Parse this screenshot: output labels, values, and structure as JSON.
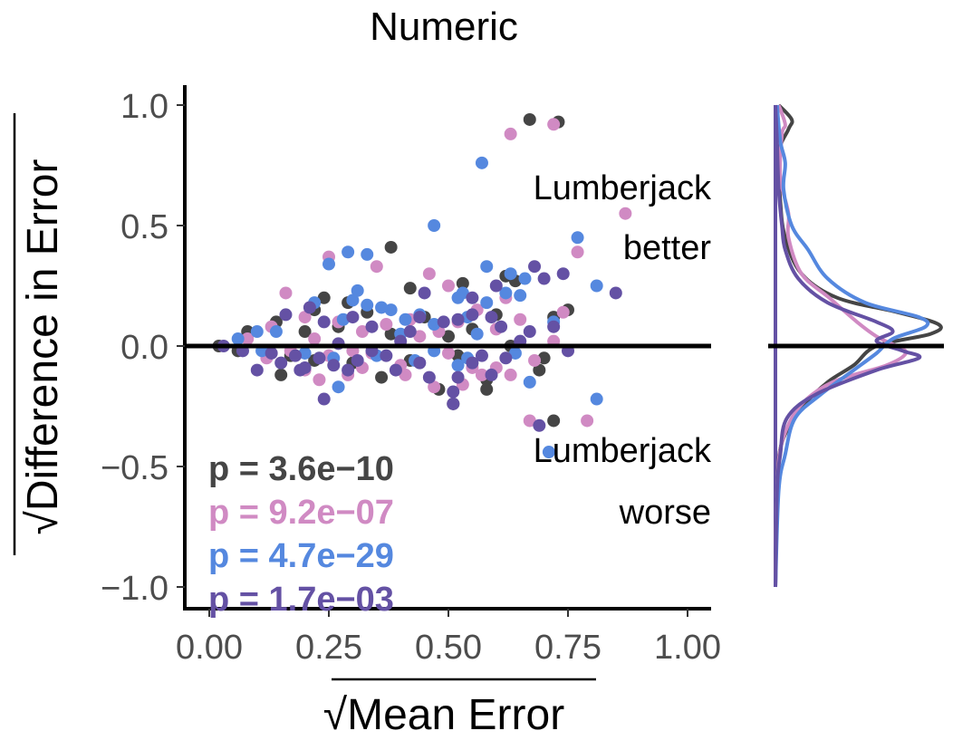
{
  "chart_data": {
    "type": "scatter",
    "title": "Numeric",
    "xlabel": "Mean Error",
    "ylabel": "Difference in Error",
    "label_radical": "√",
    "xlim": [
      -0.05,
      1.05
    ],
    "ylim": [
      -1.1,
      1.1
    ],
    "xticks": [
      {
        "v": 0.0,
        "label": "0.00"
      },
      {
        "v": 0.25,
        "label": "0.25"
      },
      {
        "v": 0.5,
        "label": "0.50"
      },
      {
        "v": 0.75,
        "label": "0.75"
      },
      {
        "v": 1.0,
        "label": "1.00"
      }
    ],
    "yticks": [
      {
        "v": 1.0,
        "label": "1.0"
      },
      {
        "v": 0.5,
        "label": "0.5"
      },
      {
        "v": 0.0,
        "label": "0.0"
      },
      {
        "v": -0.5,
        "label": "−0.5"
      },
      {
        "v": -1.0,
        "label": "−1.0"
      }
    ],
    "reference_line_y": 0,
    "grid": false,
    "annotations": {
      "better": [
        "Lumberjack",
        "better"
      ],
      "worse": [
        "Lumberjack",
        "worse"
      ]
    },
    "series": [
      {
        "color": "#454545",
        "pvalue_label": "p = 3.6e−10",
        "points": [
          [
            0.67,
            0.94
          ],
          [
            0.73,
            0.93
          ],
          [
            0.38,
            0.41
          ],
          [
            0.62,
            0.29
          ],
          [
            0.64,
            0.27
          ],
          [
            0.53,
            0.26
          ],
          [
            0.42,
            0.24
          ],
          [
            0.24,
            0.2
          ],
          [
            0.29,
            0.18
          ],
          [
            0.22,
            0.15
          ],
          [
            0.33,
            0.14
          ],
          [
            0.45,
            0.12
          ],
          [
            0.6,
            0.13
          ],
          [
            0.75,
            0.15
          ],
          [
            0.72,
            0.12
          ],
          [
            0.14,
            0.1
          ],
          [
            0.08,
            0.06
          ],
          [
            0.2,
            0.06
          ],
          [
            0.27,
            0.08
          ],
          [
            0.38,
            0.05
          ],
          [
            0.5,
            0.04
          ],
          [
            0.55,
            0.07
          ],
          [
            0.02,
            0.0
          ],
          [
            0.06,
            -0.02
          ],
          [
            0.12,
            -0.03
          ],
          [
            0.17,
            -0.04
          ],
          [
            0.22,
            -0.06
          ],
          [
            0.3,
            -0.07
          ],
          [
            0.42,
            -0.06
          ],
          [
            0.52,
            -0.04
          ],
          [
            0.63,
            0.0
          ],
          [
            0.7,
            -0.05
          ],
          [
            0.58,
            -0.14
          ],
          [
            0.48,
            -0.18
          ],
          [
            0.51,
            -0.24
          ],
          [
            0.58,
            -0.18
          ],
          [
            0.72,
            -0.31
          ],
          [
            0.69,
            -0.1
          ],
          [
            0.15,
            -0.12
          ],
          [
            0.36,
            -0.13
          ]
        ]
      },
      {
        "color": "#d08ac3",
        "pvalue_label": "p = 9.2e−07",
        "points": [
          [
            0.63,
            0.88
          ],
          [
            0.72,
            0.92
          ],
          [
            0.87,
            0.55
          ],
          [
            0.77,
            0.39
          ],
          [
            0.35,
            0.33
          ],
          [
            0.25,
            0.37
          ],
          [
            0.46,
            0.3
          ],
          [
            0.5,
            0.25
          ],
          [
            0.62,
            0.2
          ],
          [
            0.74,
            0.14
          ],
          [
            0.16,
            0.22
          ],
          [
            0.2,
            0.12
          ],
          [
            0.27,
            0.1
          ],
          [
            0.37,
            0.09
          ],
          [
            0.42,
            0.11
          ],
          [
            0.52,
            0.1
          ],
          [
            0.56,
            0.15
          ],
          [
            0.65,
            0.11
          ],
          [
            0.13,
            0.08
          ],
          [
            0.22,
            0.03
          ],
          [
            0.32,
            0.06
          ],
          [
            0.44,
            0.04
          ],
          [
            0.48,
            0.06
          ],
          [
            0.6,
            0.07
          ],
          [
            0.72,
            0.02
          ],
          [
            0.08,
            0.03
          ],
          [
            0.17,
            -0.02
          ],
          [
            0.25,
            -0.04
          ],
          [
            0.34,
            -0.03
          ],
          [
            0.4,
            -0.08
          ],
          [
            0.5,
            -0.03
          ],
          [
            0.6,
            -0.09
          ],
          [
            0.68,
            -0.06
          ],
          [
            0.2,
            -0.1
          ],
          [
            0.29,
            -0.12
          ],
          [
            0.41,
            -0.12
          ],
          [
            0.53,
            -0.16
          ],
          [
            0.63,
            -0.12
          ],
          [
            0.55,
            -0.09
          ],
          [
            0.23,
            -0.14
          ],
          [
            0.67,
            -0.31
          ],
          [
            0.79,
            -0.31
          ],
          [
            0.12,
            -0.05
          ],
          [
            0.3,
            -0.02
          ],
          [
            0.47,
            -0.17
          ],
          [
            0.57,
            -0.12
          ],
          [
            0.32,
            -0.09
          ]
        ]
      },
      {
        "color": "#5588df",
        "pvalue_label": "p = 4.7e−29",
        "points": [
          [
            0.57,
            0.76
          ],
          [
            0.47,
            0.5
          ],
          [
            0.77,
            0.45
          ],
          [
            0.29,
            0.39
          ],
          [
            0.33,
            0.38
          ],
          [
            0.25,
            0.34
          ],
          [
            0.58,
            0.33
          ],
          [
            0.63,
            0.3
          ],
          [
            0.66,
            0.28
          ],
          [
            0.81,
            0.25
          ],
          [
            0.31,
            0.23
          ],
          [
            0.53,
            0.22
          ],
          [
            0.62,
            0.22
          ],
          [
            0.65,
            0.21
          ],
          [
            0.58,
            0.18
          ],
          [
            0.22,
            0.18
          ],
          [
            0.3,
            0.19
          ],
          [
            0.33,
            0.17
          ],
          [
            0.52,
            0.2
          ],
          [
            0.38,
            0.15
          ],
          [
            0.44,
            0.13
          ],
          [
            0.54,
            0.12
          ],
          [
            0.28,
            0.11
          ],
          [
            0.06,
            0.03
          ],
          [
            0.14,
            0.06
          ],
          [
            0.41,
            0.11
          ],
          [
            0.47,
            0.09
          ],
          [
            0.56,
            0.05
          ],
          [
            0.72,
            0.1
          ],
          [
            0.11,
            -0.02
          ],
          [
            0.2,
            -0.03
          ],
          [
            0.26,
            -0.05
          ],
          [
            0.35,
            -0.04
          ],
          [
            0.43,
            -0.06
          ],
          [
            0.54,
            -0.05
          ],
          [
            0.64,
            -0.03
          ],
          [
            0.67,
            -0.15
          ],
          [
            0.27,
            -0.17
          ],
          [
            0.81,
            -0.22
          ],
          [
            0.71,
            -0.44
          ],
          [
            0.52,
            -0.08
          ],
          [
            0.47,
            -0.02
          ],
          [
            0.4,
            0.05
          ],
          [
            0.1,
            0.06
          ],
          [
            0.36,
            0.16
          ]
        ]
      },
      {
        "color": "#6451a4",
        "pvalue_label": "p = 1.7e−03",
        "points": [
          [
            0.85,
            0.22
          ],
          [
            0.7,
            0.28
          ],
          [
            0.74,
            0.3
          ],
          [
            0.6,
            0.25
          ],
          [
            0.68,
            0.33
          ],
          [
            0.45,
            0.22
          ],
          [
            0.55,
            0.2
          ],
          [
            0.16,
            0.13
          ],
          [
            0.21,
            0.16
          ],
          [
            0.3,
            0.12
          ],
          [
            0.44,
            0.12
          ],
          [
            0.49,
            0.1
          ],
          [
            0.55,
            0.13
          ],
          [
            0.61,
            0.08
          ],
          [
            0.67,
            0.06
          ],
          [
            0.72,
            0.08
          ],
          [
            0.24,
            0.1
          ],
          [
            0.34,
            0.08
          ],
          [
            0.42,
            0.06
          ],
          [
            0.52,
            0.11
          ],
          [
            0.59,
            0.12
          ],
          [
            0.07,
            -0.02
          ],
          [
            0.13,
            -0.03
          ],
          [
            0.18,
            -0.04
          ],
          [
            0.23,
            -0.05
          ],
          [
            0.26,
            -0.08
          ],
          [
            0.29,
            -0.1
          ],
          [
            0.34,
            -0.02
          ],
          [
            0.39,
            -0.1
          ],
          [
            0.44,
            -0.07
          ],
          [
            0.46,
            -0.13
          ],
          [
            0.51,
            -0.19
          ],
          [
            0.55,
            -0.07
          ],
          [
            0.59,
            -0.12
          ],
          [
            0.62,
            -0.05
          ],
          [
            0.65,
            0.02
          ],
          [
            0.69,
            -0.33
          ],
          [
            0.75,
            -0.02
          ],
          [
            0.19,
            -0.1
          ],
          [
            0.24,
            -0.22
          ],
          [
            0.51,
            -0.24
          ],
          [
            0.1,
            -0.1
          ],
          [
            0.31,
            -0.06
          ],
          [
            0.37,
            -0.04
          ],
          [
            0.15,
            -0.07
          ],
          [
            0.2,
            -0.09
          ],
          [
            0.03,
            0.0
          ],
          [
            0.27,
            0.01
          ],
          [
            0.4,
            0.02
          ],
          [
            0.57,
            -0.04
          ],
          [
            0.52,
            -0.13
          ]
        ]
      }
    ],
    "marginal_density": {
      "y_range": [
        -1.0,
        1.0
      ],
      "series": [
        {
          "color": "#454545",
          "points": [
            [
              -1.0,
              0.0
            ],
            [
              -0.6,
              0.01
            ],
            [
              -0.4,
              0.04
            ],
            [
              -0.25,
              0.17
            ],
            [
              -0.15,
              0.32
            ],
            [
              -0.08,
              0.48
            ],
            [
              0.0,
              0.62
            ],
            [
              0.05,
              0.95
            ],
            [
              0.09,
              1.0
            ],
            [
              0.14,
              0.75
            ],
            [
              0.2,
              0.38
            ],
            [
              0.3,
              0.16
            ],
            [
              0.45,
              0.06
            ],
            [
              0.6,
              0.03
            ],
            [
              0.8,
              0.02
            ],
            [
              0.9,
              0.08
            ],
            [
              0.94,
              0.1
            ],
            [
              1.0,
              0.02
            ]
          ]
        },
        {
          "color": "#d08ac3",
          "points": [
            [
              -1.0,
              0.0
            ],
            [
              -0.6,
              0.01
            ],
            [
              -0.4,
              0.04
            ],
            [
              -0.25,
              0.15
            ],
            [
              -0.15,
              0.35
            ],
            [
              -0.08,
              0.68
            ],
            [
              -0.03,
              0.8
            ],
            [
              0.0,
              0.74
            ],
            [
              0.04,
              0.62
            ],
            [
              0.1,
              0.5
            ],
            [
              0.2,
              0.33
            ],
            [
              0.3,
              0.16
            ],
            [
              0.45,
              0.08
            ],
            [
              0.55,
              0.08
            ],
            [
              0.7,
              0.03
            ],
            [
              0.88,
              0.04
            ],
            [
              0.92,
              0.06
            ],
            [
              1.0,
              0.02
            ]
          ]
        },
        {
          "color": "#5588df",
          "points": [
            [
              -1.0,
              0.0
            ],
            [
              -0.6,
              0.02
            ],
            [
              -0.45,
              0.06
            ],
            [
              -0.3,
              0.12
            ],
            [
              -0.2,
              0.28
            ],
            [
              -0.1,
              0.48
            ],
            [
              -0.03,
              0.62
            ],
            [
              0.03,
              0.72
            ],
            [
              0.08,
              0.92
            ],
            [
              0.12,
              0.88
            ],
            [
              0.18,
              0.55
            ],
            [
              0.28,
              0.32
            ],
            [
              0.4,
              0.2
            ],
            [
              0.5,
              0.1
            ],
            [
              0.65,
              0.05
            ],
            [
              0.76,
              0.06
            ],
            [
              0.85,
              0.03
            ],
            [
              1.0,
              0.01
            ]
          ]
        },
        {
          "color": "#6451a4",
          "points": [
            [
              -1.0,
              0.0
            ],
            [
              -0.6,
              0.01
            ],
            [
              -0.45,
              0.03
            ],
            [
              -0.3,
              0.07
            ],
            [
              -0.2,
              0.25
            ],
            [
              -0.1,
              0.62
            ],
            [
              -0.05,
              0.88
            ],
            [
              -0.02,
              0.78
            ],
            [
              0.02,
              0.62
            ],
            [
              0.06,
              0.72
            ],
            [
              0.1,
              0.62
            ],
            [
              0.18,
              0.32
            ],
            [
              0.28,
              0.14
            ],
            [
              0.4,
              0.06
            ],
            [
              0.5,
              0.04
            ],
            [
              0.65,
              0.02
            ],
            [
              0.85,
              0.01
            ],
            [
              1.0,
              0.0
            ]
          ]
        }
      ]
    }
  }
}
